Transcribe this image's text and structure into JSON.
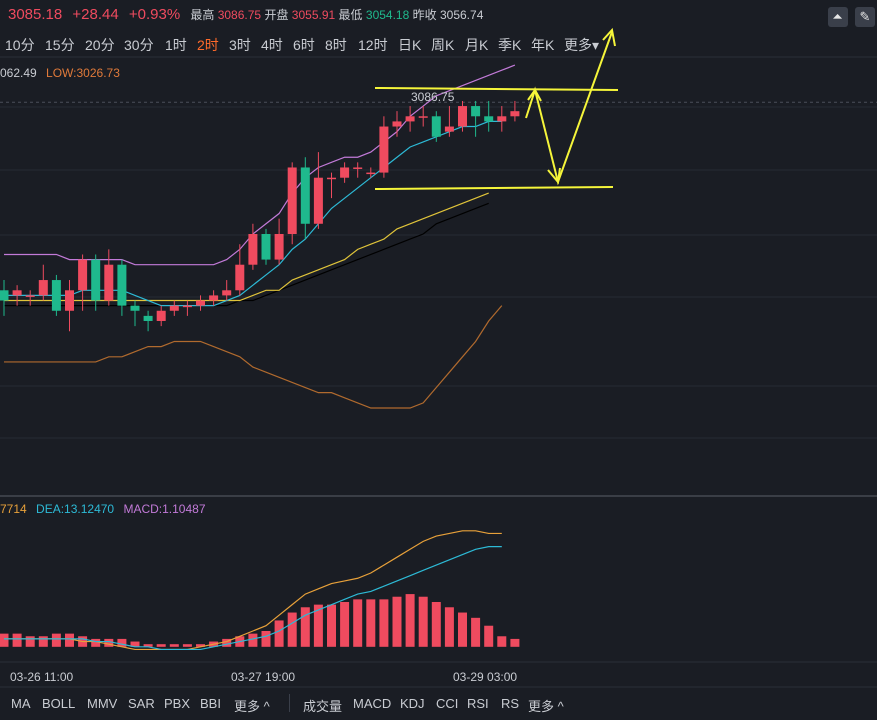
{
  "header": {
    "price": "3085.18",
    "change": "+28.44",
    "change_pct": "+0.93%",
    "high_label": "最高",
    "high_value": "3086.75",
    "open_label": "开盘",
    "open_value": "3055.91",
    "low_label": "最低",
    "low_value": "3054.18",
    "prev_label": "昨收",
    "prev_value": "3056.74"
  },
  "tools": {
    "draw_icon": "chart-draw-icon",
    "edit_icon": "pencil-icon"
  },
  "periods": [
    {
      "label": "10分"
    },
    {
      "label": "15分"
    },
    {
      "label": "20分"
    },
    {
      "label": "30分"
    },
    {
      "label": "1时"
    },
    {
      "label": "2时"
    },
    {
      "label": "3时"
    },
    {
      "label": "4时"
    },
    {
      "label": "6时"
    },
    {
      "label": "8时"
    },
    {
      "label": "12时"
    },
    {
      "label": "日K"
    },
    {
      "label": "周K"
    },
    {
      "label": "月K"
    },
    {
      "label": "季K"
    },
    {
      "label": "年K"
    },
    {
      "label": "更多▾"
    }
  ],
  "active_period": "2时",
  "main_legend": {
    "high_cut": "062.49",
    "low": "LOW:3026.73"
  },
  "high_marker": "3086.75",
  "sub_legend": {
    "dif_cut": "7714",
    "dea": "DEA:13.12470",
    "macd": "MACD:1.10487"
  },
  "time_labels": [
    "03-26 11:00",
    "03-27 19:00",
    "03-29 03:00"
  ],
  "bottom_tabs": {
    "main": [
      "MA",
      "BOLL",
      "MMV",
      "SAR",
      "PBX",
      "BBI",
      "更多 ^"
    ],
    "sub": [
      "成交量",
      "MACD",
      "KDJ",
      "CCI",
      "RSI",
      "RS",
      "更多 ^"
    ]
  },
  "colors": {
    "up": "#ef4b5f",
    "down": "#1fb98d",
    "bg": "#1a1d24",
    "annotation": "#f5f53a",
    "active": "#ff6a2a"
  },
  "chart_data": {
    "type": "candlestick",
    "price_range": [
      3010,
      3095
    ],
    "candles": [
      {
        "o": 3050,
        "c": 3048,
        "h": 3052,
        "l": 3045
      },
      {
        "o": 3049,
        "c": 3050,
        "h": 3051,
        "l": 3047
      },
      {
        "o": 3049,
        "c": 3049,
        "h": 3050,
        "l": 3047
      },
      {
        "o": 3049,
        "c": 3052,
        "h": 3055,
        "l": 3048
      },
      {
        "o": 3052,
        "c": 3046,
        "h": 3053,
        "l": 3045
      },
      {
        "o": 3046,
        "c": 3050,
        "h": 3052,
        "l": 3042
      },
      {
        "o": 3050,
        "c": 3056,
        "h": 3057,
        "l": 3046
      },
      {
        "o": 3056,
        "c": 3048,
        "h": 3057,
        "l": 3046
      },
      {
        "o": 3048,
        "c": 3055,
        "h": 3058,
        "l": 3047
      },
      {
        "o": 3055,
        "c": 3047,
        "h": 3056,
        "l": 3045
      },
      {
        "o": 3047,
        "c": 3046,
        "h": 3048,
        "l": 3043
      },
      {
        "o": 3045,
        "c": 3044,
        "h": 3046,
        "l": 3042
      },
      {
        "o": 3044,
        "c": 3046,
        "h": 3047,
        "l": 3043
      },
      {
        "o": 3046,
        "c": 3047,
        "h": 3048,
        "l": 3045
      },
      {
        "o": 3047,
        "c": 3047,
        "h": 3048,
        "l": 3045
      },
      {
        "o": 3047,
        "c": 3048,
        "h": 3049,
        "l": 3046
      },
      {
        "o": 3048,
        "c": 3049,
        "h": 3050,
        "l": 3047
      },
      {
        "o": 3049,
        "c": 3050,
        "h": 3052,
        "l": 3048
      },
      {
        "o": 3050,
        "c": 3055,
        "h": 3059,
        "l": 3049
      },
      {
        "o": 3055,
        "c": 3061,
        "h": 3063,
        "l": 3054
      },
      {
        "o": 3061,
        "c": 3056,
        "h": 3062,
        "l": 3055
      },
      {
        "o": 3056,
        "c": 3061,
        "h": 3064,
        "l": 3055
      },
      {
        "o": 3061,
        "c": 3074,
        "h": 3075,
        "l": 3059
      },
      {
        "o": 3074,
        "c": 3063,
        "h": 3076,
        "l": 3060
      },
      {
        "o": 3063,
        "c": 3072,
        "h": 3077,
        "l": 3062
      },
      {
        "o": 3072,
        "c": 3072,
        "h": 3073,
        "l": 3068
      },
      {
        "o": 3072,
        "c": 3074,
        "h": 3075,
        "l": 3071
      },
      {
        "o": 3074,
        "c": 3074,
        "h": 3075,
        "l": 3072
      },
      {
        "o": 3073,
        "c": 3073,
        "h": 3074,
        "l": 3072
      },
      {
        "o": 3073,
        "c": 3082,
        "h": 3084,
        "l": 3072
      },
      {
        "o": 3082,
        "c": 3083,
        "h": 3085,
        "l": 3080
      },
      {
        "o": 3083,
        "c": 3084,
        "h": 3086,
        "l": 3081
      },
      {
        "o": 3084,
        "c": 3084,
        "h": 3086,
        "l": 3082
      },
      {
        "o": 3084,
        "c": 3080,
        "h": 3085,
        "l": 3079
      },
      {
        "o": 3081,
        "c": 3082,
        "h": 3086,
        "l": 3080
      },
      {
        "o": 3082,
        "c": 3086,
        "h": 3087,
        "l": 3081
      },
      {
        "o": 3086,
        "c": 3084,
        "h": 3087,
        "l": 3080
      },
      {
        "o": 3084,
        "c": 3083,
        "h": 3087,
        "l": 3081
      },
      {
        "o": 3083,
        "c": 3084,
        "h": 3086,
        "l": 3081
      },
      {
        "o": 3084,
        "c": 3085,
        "h": 3087,
        "l": 3083
      }
    ],
    "boll_upper": [
      3057,
      3057,
      3057,
      3057,
      3057,
      3056,
      3056,
      3056,
      3056,
      3056,
      3055,
      3055,
      3055,
      3055,
      3055,
      3055,
      3055,
      3056,
      3058,
      3061,
      3063,
      3065,
      3069,
      3072,
      3074,
      3075,
      3076,
      3076,
      3077,
      3079,
      3081,
      3084,
      3086,
      3088,
      3089,
      3090,
      3091,
      3092,
      3093,
      3094
    ],
    "boll_lower": [
      3036,
      3036,
      3036,
      3036,
      3036,
      3036,
      3036,
      3036,
      3037,
      3037,
      3038,
      3039,
      3039,
      3040,
      3040,
      3040,
      3039,
      3038,
      3037,
      3035,
      3034,
      3033,
      3032,
      3031,
      3030,
      3030,
      3029,
      3028,
      3027,
      3027,
      3027,
      3027,
      3028,
      3031,
      3034,
      3037,
      3040,
      3044,
      3047
    ],
    "ma_fast": [
      3049,
      3049,
      3049,
      3049,
      3049,
      3049,
      3050,
      3050,
      3050,
      3050,
      3049,
      3048,
      3047,
      3047,
      3047,
      3047,
      3047,
      3048,
      3049,
      3051,
      3053,
      3055,
      3058,
      3060,
      3063,
      3066,
      3068,
      3070,
      3072,
      3074,
      3076,
      3078,
      3079,
      3080,
      3081,
      3082,
      3082,
      3083,
      3083
    ],
    "ma_mid": [
      3048,
      3048,
      3048,
      3048,
      3048,
      3048,
      3048,
      3048,
      3048,
      3048,
      3048,
      3048,
      3048,
      3048,
      3048,
      3048,
      3048,
      3048,
      3048,
      3049,
      3050,
      3050,
      3052,
      3053,
      3054,
      3055,
      3056,
      3058,
      3059,
      3060,
      3062,
      3063,
      3064,
      3065,
      3066,
      3067,
      3068,
      3069
    ],
    "ma_slow": [
      3047,
      3047,
      3047,
      3047,
      3047,
      3047,
      3047,
      3047,
      3047,
      3047,
      3047,
      3047,
      3047,
      3047,
      3047,
      3047,
      3047,
      3047,
      3048,
      3048,
      3049,
      3050,
      3051,
      3052,
      3053,
      3054,
      3055,
      3056,
      3057,
      3058,
      3059,
      3060,
      3061,
      3063,
      3064,
      3065,
      3066,
      3067
    ],
    "macd_hist": [
      5,
      5,
      4,
      4,
      5,
      5,
      4,
      3,
      3,
      3,
      2,
      1,
      1,
      1,
      1,
      1,
      2,
      3,
      4,
      5,
      6,
      10,
      13,
      15,
      16,
      16,
      17,
      18,
      18,
      18,
      19,
      20,
      19,
      17,
      15,
      13,
      11,
      8,
      4,
      3
    ],
    "dif": [
      3,
      3,
      3,
      3,
      3,
      3,
      2,
      2,
      1,
      0,
      -1,
      -1,
      -1,
      -1,
      -1,
      0,
      1,
      2,
      4,
      6,
      8,
      12,
      16,
      20,
      22,
      24,
      25,
      26,
      28,
      31,
      34,
      37,
      40,
      42,
      43,
      44,
      44,
      43,
      43
    ],
    "dea": [
      3,
      3,
      3,
      3,
      3,
      3,
      3,
      2,
      2,
      1,
      0,
      0,
      -1,
      -1,
      -1,
      -1,
      0,
      1,
      2,
      3,
      4,
      6,
      9,
      12,
      14,
      16,
      18,
      20,
      21,
      23,
      25,
      27,
      29,
      31,
      33,
      35,
      37,
      38,
      38
    ],
    "macd_range": [
      -5,
      50
    ]
  }
}
